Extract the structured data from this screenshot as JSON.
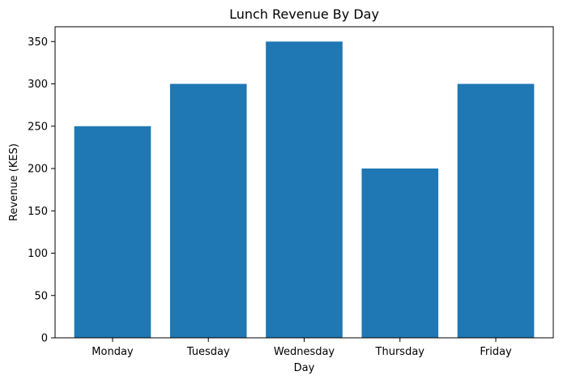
{
  "chart_data": {
    "type": "bar",
    "title": "Lunch Revenue By Day",
    "xlabel": "Day",
    "ylabel": "Revenue (KES)",
    "categories": [
      "Monday",
      "Tuesday",
      "Wednesday",
      "Thursday",
      "Friday"
    ],
    "values": [
      250,
      300,
      350,
      200,
      300
    ],
    "ylim": [
      0,
      367.5
    ],
    "yticks": [
      0,
      50,
      100,
      150,
      200,
      250,
      300,
      350
    ],
    "grid": false,
    "legend": "none",
    "colors": {
      "bar": "#1f77b4",
      "axis": "#000000",
      "background": "#ffffff"
    }
  }
}
